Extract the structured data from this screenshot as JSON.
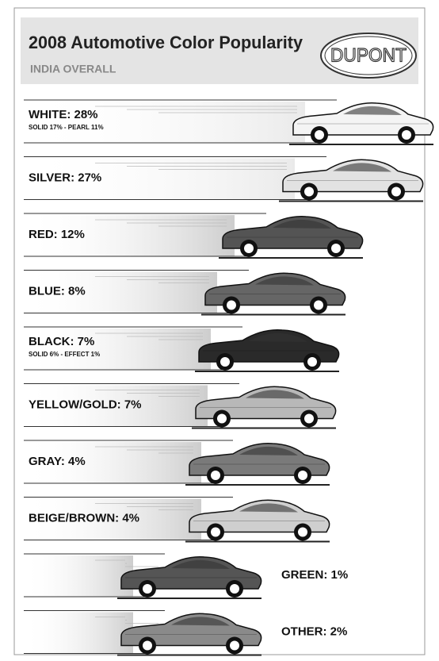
{
  "header": {
    "title": "2008 Automotive Color Popularity",
    "subtitle": "INDIA OVERALL",
    "logo": "DUPONT"
  },
  "rows": [
    {
      "label": "WHITE: 28%",
      "detail": "SOLID 17% - PEARL 11%",
      "shade": "#f4f4f4"
    },
    {
      "label": "SILVER: 27%",
      "shade": "#e2e2e2"
    },
    {
      "label": "RED: 12%",
      "shade": "#545454"
    },
    {
      "label": "BLUE: 8%",
      "shade": "#666666"
    },
    {
      "label": "BLACK: 7%",
      "detail": "SOLID 6% - EFFECT 1%",
      "shade": "#2a2a2a"
    },
    {
      "label": "YELLOW/GOLD: 7%",
      "shade": "#b8b8b8"
    },
    {
      "label": "GRAY: 4%",
      "shade": "#7a7a7a"
    },
    {
      "label": "BEIGE/BROWN: 4%",
      "shade": "#cfcfcf"
    },
    {
      "label": "GREEN: 1%",
      "shade": "#555555"
    },
    {
      "label": "OTHER: 2%",
      "shade": "#8a8a8a"
    }
  ]
}
